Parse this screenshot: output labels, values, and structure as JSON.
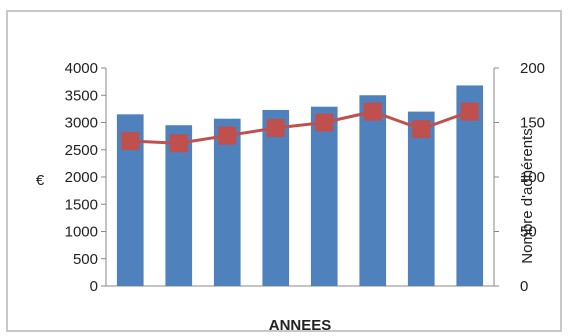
{
  "chart_data": {
    "type": "bar",
    "categories": [
      "",
      "",
      "",
      "",
      "",
      "",
      "",
      ""
    ],
    "xlabel": "ANNEES",
    "ylabel": "€",
    "y2label": "Nombre d'adhérents",
    "ylim": [
      0,
      4000
    ],
    "y2lim": [
      0,
      200
    ],
    "yticks": [
      "4000",
      "3500",
      "3000",
      "2500",
      "2000",
      "1500",
      "1000",
      "500",
      "0"
    ],
    "y2ticks": [
      "200",
      "150",
      "100",
      "50",
      "0"
    ],
    "y2ticks_values": [
      200,
      150,
      100,
      50,
      0
    ],
    "series": [
      {
        "type": "bar",
        "axis": "left",
        "color": "#4f81bd",
        "values": [
          3150,
          2950,
          3070,
          3230,
          3290,
          3500,
          3200,
          3680
        ]
      },
      {
        "type": "line",
        "axis": "right",
        "color": "#c0504d",
        "values": [
          133,
          131,
          138,
          145,
          150,
          160,
          144,
          160
        ]
      }
    ],
    "grid": false
  }
}
